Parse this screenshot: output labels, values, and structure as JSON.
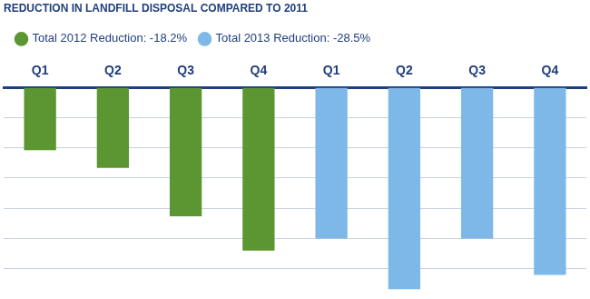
{
  "chart_data": {
    "type": "bar",
    "title": "REDUCTION IN LANDFILL DISPOSAL COMPARED TO 2011",
    "categories": [
      "Q1",
      "Q2",
      "Q3",
      "Q4",
      "Q1",
      "Q2",
      "Q3",
      "Q4"
    ],
    "series": [
      {
        "name": "Total 2012 Reduction: -18.2%",
        "color": "#5b9632",
        "values": [
          -10.4,
          -13.3,
          -21.3,
          -27.0,
          null,
          null,
          null,
          null
        ]
      },
      {
        "name": "Total 2013 Reduction: -28.5%",
        "color": "#7db8e8",
        "values": [
          null,
          null,
          null,
          null,
          -25.0,
          -33.4,
          -25.0,
          -31.0
        ]
      }
    ],
    "ylim": [
      -35,
      0
    ],
    "yticks": [
      0,
      -5,
      -10,
      -15,
      -20,
      -25,
      -30,
      -35
    ],
    "grid": true,
    "legend": "top",
    "tick_labels": "x"
  }
}
